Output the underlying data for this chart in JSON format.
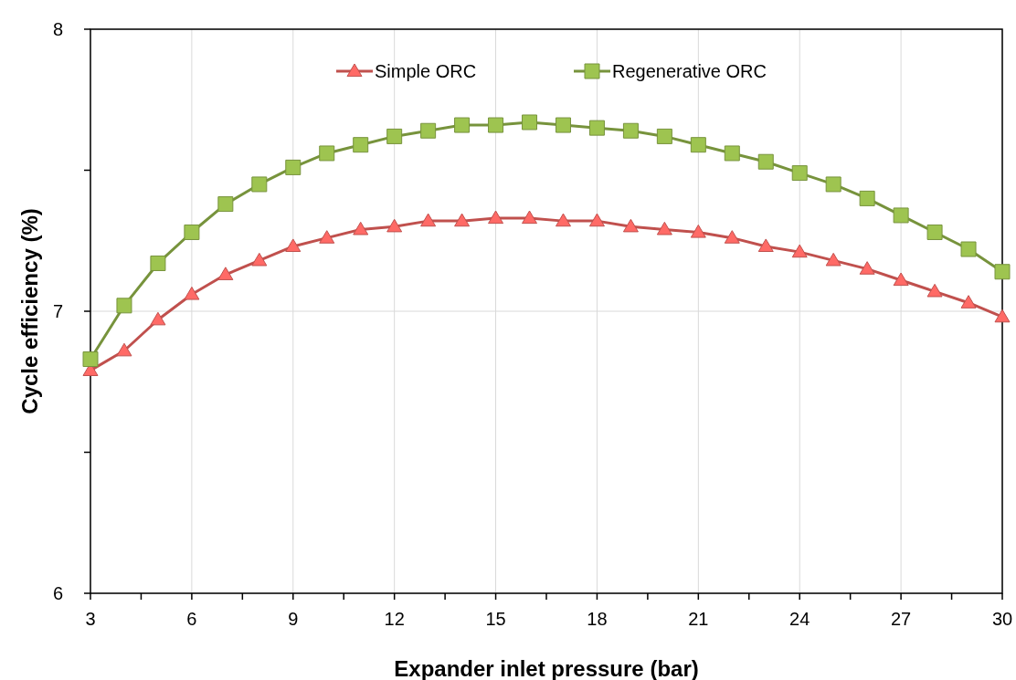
{
  "chart_data": {
    "type": "line",
    "xlabel": "Expander inlet pressure (bar)",
    "ylabel": "Cycle efficiency (%)",
    "x": [
      3,
      4,
      5,
      6,
      7,
      8,
      9,
      10,
      11,
      12,
      13,
      14,
      15,
      16,
      17,
      18,
      19,
      20,
      21,
      22,
      23,
      24,
      25,
      26,
      27,
      28,
      29,
      30
    ],
    "xlim": [
      3,
      30
    ],
    "xticks": [
      3,
      {
        "value": 4.5,
        "label": null
      },
      6,
      {
        "value": 7.5,
        "label": null
      },
      9,
      {
        "value": 10.5,
        "label": null
      },
      12,
      {
        "value": 13.5,
        "label": null
      },
      15,
      {
        "value": 16.5,
        "label": null
      },
      18,
      {
        "value": 19.5,
        "label": null
      },
      21,
      {
        "value": 22.5,
        "label": null
      },
      24,
      {
        "value": 25.5,
        "label": null
      },
      27,
      {
        "value": 28.5,
        "label": null
      },
      30
    ],
    "ylim": [
      6,
      8
    ],
    "yticks": [
      6,
      {
        "value": 6.5,
        "label": null
      },
      7,
      {
        "value": 7.5,
        "label": null
      },
      8
    ],
    "grid": true,
    "legend": "top",
    "line_style": "solid",
    "series": [
      {
        "name": "Simple ORC",
        "color": "#c0504d",
        "marker": "triangle",
        "values": [
          6.79,
          6.86,
          6.97,
          7.06,
          7.13,
          7.18,
          7.23,
          7.26,
          7.29,
          7.3,
          7.32,
          7.32,
          7.33,
          7.33,
          7.32,
          7.32,
          7.3,
          7.29,
          7.28,
          7.26,
          7.23,
          7.21,
          7.18,
          7.15,
          7.11,
          7.07,
          7.03,
          6.98
        ]
      },
      {
        "name": "Regenerative ORC",
        "color": "#77933c",
        "marker": "square",
        "values": [
          6.83,
          7.02,
          7.17,
          7.28,
          7.38,
          7.45,
          7.51,
          7.56,
          7.59,
          7.62,
          7.64,
          7.66,
          7.66,
          7.67,
          7.66,
          7.65,
          7.64,
          7.62,
          7.59,
          7.56,
          7.53,
          7.49,
          7.45,
          7.4,
          7.34,
          7.28,
          7.22,
          7.14
        ]
      }
    ]
  }
}
